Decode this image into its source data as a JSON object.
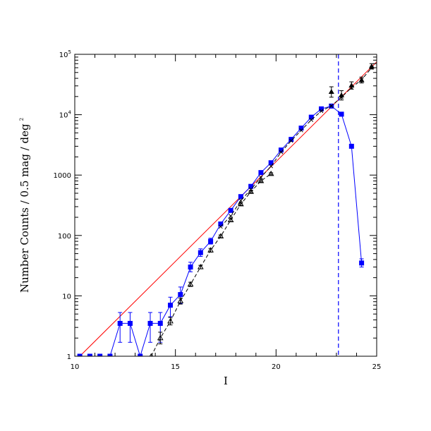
{
  "chart_data": {
    "type": "scatter",
    "xlabel": "I",
    "ylabel": "Number Counts / 0.5 mag / deg",
    "ylabel_superscript": "2",
    "xlim": [
      10,
      25
    ],
    "ylim": [
      1,
      100000
    ],
    "yscale": "log",
    "x_ticks": [
      10,
      15,
      20,
      25
    ],
    "y_ticks": [
      {
        "value": 1,
        "base": "1",
        "exp": ""
      },
      {
        "value": 10,
        "base": "10",
        "exp": ""
      },
      {
        "value": 100,
        "base": "100",
        "exp": ""
      },
      {
        "value": 1000,
        "base": "1000",
        "exp": ""
      },
      {
        "value": 10000,
        "base": "10",
        "exp": "4"
      },
      {
        "value": 100000,
        "base": "10",
        "exp": "5"
      }
    ],
    "grid": false,
    "colors": {
      "squares": "#0000ff",
      "fit_line": "#ff0000",
      "limit_line": "#0000ff",
      "triangles": "#000000"
    },
    "series": [
      {
        "marker": "square",
        "line": "solid",
        "points": [
          {
            "x": 10.25,
            "y": 1
          },
          {
            "x": 10.75,
            "y": 1
          },
          {
            "x": 11.25,
            "y": 1
          },
          {
            "x": 11.75,
            "y": 1
          },
          {
            "x": 12.25,
            "y": 3.5,
            "ylo": 1.7,
            "yhi": 5.3
          },
          {
            "x": 12.75,
            "y": 3.5,
            "ylo": 1.7,
            "yhi": 5.3
          },
          {
            "x": 13.25,
            "y": 1
          },
          {
            "x": 13.75,
            "y": 3.5,
            "ylo": 1.7,
            "yhi": 5.3
          },
          {
            "x": 14.25,
            "y": 3.5,
            "ylo": 1.7,
            "yhi": 5.3
          },
          {
            "x": 14.75,
            "y": 7,
            "ylo": 4.5,
            "yhi": 9.5
          },
          {
            "x": 15.25,
            "y": 10.5,
            "ylo": 7.5,
            "yhi": 14
          },
          {
            "x": 15.75,
            "y": 30,
            "ylo": 25,
            "yhi": 36
          },
          {
            "x": 16.25,
            "y": 52,
            "ylo": 45,
            "yhi": 60
          },
          {
            "x": 16.75,
            "y": 80,
            "ylo": 72,
            "yhi": 90
          },
          {
            "x": 17.25,
            "y": 155
          },
          {
            "x": 17.75,
            "y": 260
          },
          {
            "x": 18.25,
            "y": 440
          },
          {
            "x": 18.75,
            "y": 650
          },
          {
            "x": 19.25,
            "y": 1100
          },
          {
            "x": 19.75,
            "y": 1600
          },
          {
            "x": 20.25,
            "y": 2600
          },
          {
            "x": 20.75,
            "y": 3900
          },
          {
            "x": 21.25,
            "y": 6000
          },
          {
            "x": 21.75,
            "y": 9100
          },
          {
            "x": 22.25,
            "y": 12500
          },
          {
            "x": 22.75,
            "y": 13900
          },
          {
            "x": 23.25,
            "y": 10200
          },
          {
            "x": 23.75,
            "y": 3000
          },
          {
            "x": 24.25,
            "y": 35,
            "ylo": 30,
            "yhi": 41
          }
        ]
      },
      {
        "marker": "open-triangle",
        "line": "dashed",
        "points": [
          {
            "x": 13.8,
            "y": 1
          },
          {
            "x": 14.25,
            "y": 2,
            "ylo": 1.6,
            "yhi": 2.5
          },
          {
            "x": 14.75,
            "y": 3.8,
            "ylo": 3.3,
            "yhi": 4.4
          },
          {
            "x": 15.25,
            "y": 8.2,
            "ylo": 7.3,
            "yhi": 9.2
          },
          {
            "x": 15.75,
            "y": 15.5,
            "ylo": 14.3,
            "yhi": 16.8
          },
          {
            "x": 16.25,
            "y": 30,
            "ylo": 28,
            "yhi": 32
          },
          {
            "x": 16.75,
            "y": 57,
            "ylo": 53,
            "yhi": 61
          },
          {
            "x": 17.25,
            "y": 97,
            "ylo": 92,
            "yhi": 102
          },
          {
            "x": 17.75,
            "y": 180,
            "ylo": 170,
            "yhi": 190
          },
          {
            "x": 18.25,
            "y": 330,
            "ylo": 315,
            "yhi": 345
          },
          {
            "x": 18.75,
            "y": 530,
            "ylo": 510,
            "yhi": 550
          },
          {
            "x": 19.25,
            "y": 800,
            "ylo": 770,
            "yhi": 830
          },
          {
            "x": 19.75,
            "y": 1050,
            "ylo": 1010,
            "yhi": 1090
          }
        ]
      },
      {
        "marker": "cross",
        "line": "dashed",
        "points": [
          {
            "x": 17.25,
            "y": 140
          },
          {
            "x": 17.75,
            "y": 210
          },
          {
            "x": 18.25,
            "y": 380
          },
          {
            "x": 18.75,
            "y": 580
          },
          {
            "x": 19.25,
            "y": 920
          },
          {
            "x": 19.75,
            "y": 1400
          },
          {
            "x": 20.25,
            "y": 2400
          },
          {
            "x": 20.75,
            "y": 3700
          },
          {
            "x": 21.25,
            "y": 5500
          },
          {
            "x": 21.75,
            "y": 8200
          },
          {
            "x": 22.25,
            "y": 11500
          },
          {
            "x": 22.75,
            "y": 14000
          },
          {
            "x": 23.25,
            "y": 19500
          },
          {
            "x": 23.75,
            "y": 28000
          },
          {
            "x": 24.25,
            "y": 38000
          },
          {
            "x": 24.75,
            "y": 60000
          }
        ]
      },
      {
        "marker": "filled-triangle",
        "line": "none",
        "points": [
          {
            "x": 22.75,
            "y": 24000,
            "ylo": 19500,
            "yhi": 29000
          },
          {
            "x": 23.25,
            "y": 21000,
            "ylo": 17500,
            "yhi": 25000
          },
          {
            "x": 23.75,
            "y": 30500,
            "ylo": 26500,
            "yhi": 35000
          },
          {
            "x": 24.25,
            "y": 37500,
            "ylo": 33500,
            "yhi": 42000
          },
          {
            "x": 24.75,
            "y": 63000,
            "ylo": 57000,
            "yhi": 70000
          }
        ]
      }
    ],
    "fit_line": {
      "from": {
        "x": 10.25,
        "y": 1
      },
      "to": {
        "x": 25,
        "y": 75000
      }
    },
    "limit_line": {
      "x": 23.1
    }
  }
}
